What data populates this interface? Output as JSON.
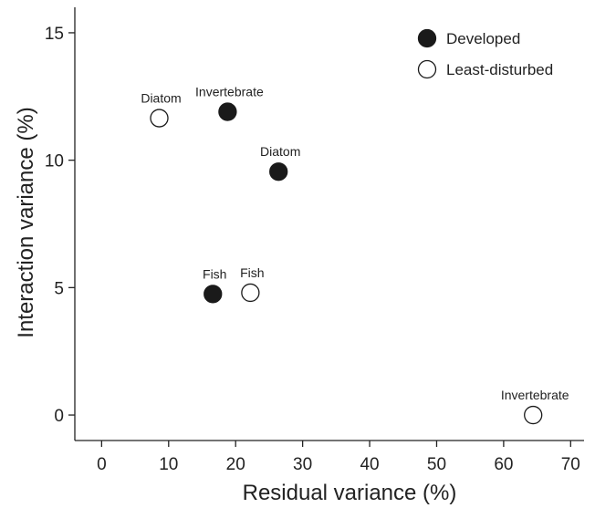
{
  "chart_data": {
    "type": "scatter",
    "title": "",
    "xlabel": "Residual variance (%)",
    "ylabel": "Interaction variance (%)",
    "xlim": [
      -4,
      72
    ],
    "ylim": [
      -1,
      16
    ],
    "x_ticks": [
      0,
      10,
      20,
      30,
      40,
      50,
      60,
      70
    ],
    "y_ticks": [
      0,
      5,
      10,
      15
    ],
    "grid": false,
    "legend_position": "top-right",
    "series": [
      {
        "name": "Developed",
        "marker": "filled-circle",
        "points": [
          {
            "label": "Invertebrate",
            "x": 18.8,
            "y": 11.9
          },
          {
            "label": "Diatom",
            "x": 26.4,
            "y": 9.55
          },
          {
            "label": "Fish",
            "x": 16.6,
            "y": 4.75
          }
        ]
      },
      {
        "name": "Least-disturbed",
        "marker": "open-circle",
        "points": [
          {
            "label": "Diatom",
            "x": 8.6,
            "y": 11.65
          },
          {
            "label": "Fish",
            "x": 22.2,
            "y": 4.8
          },
          {
            "label": "Invertebrate",
            "x": 64.4,
            "y": 0.0
          }
        ]
      }
    ]
  }
}
